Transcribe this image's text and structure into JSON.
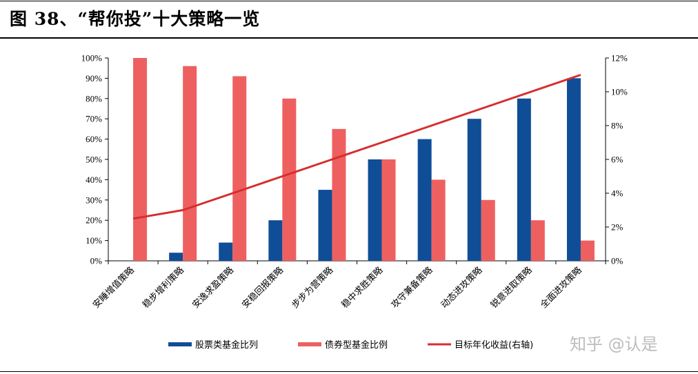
{
  "title": "图 38、“帮你投”十大策略一览",
  "watermark": "知乎 @认是",
  "colors": {
    "equity": "#0f4d97",
    "bond": "#ee6060",
    "line": "#d62d2d",
    "axis": "#000000"
  },
  "chart_data": {
    "type": "bar",
    "categories": [
      "安睡增值策略",
      "稳步增利策略",
      "安逸求盈策略",
      "安稳回报策略",
      "步步为营策略",
      "稳中求胜策略",
      "攻守兼备策略",
      "动态进攻策略",
      "锐意进取策略",
      "全面进攻策略"
    ],
    "series": [
      {
        "name": "股票类基金比列",
        "type": "bar",
        "axis": "left",
        "color": "#0f4d97",
        "values": [
          0,
          4,
          9,
          20,
          35,
          50,
          60,
          70,
          80,
          90
        ]
      },
      {
        "name": "债券型基金比例",
        "type": "bar",
        "axis": "left",
        "color": "#ee6060",
        "values": [
          100,
          96,
          91,
          80,
          65,
          50,
          40,
          30,
          20,
          10
        ]
      },
      {
        "name": "目标年化收益(右轴)",
        "type": "line",
        "axis": "right",
        "color": "#d62d2d",
        "values": [
          2.5,
          3.0,
          4.0,
          5.0,
          6.0,
          7.0,
          8.0,
          9.0,
          10.0,
          11.0
        ]
      }
    ],
    "ylim": [
      0,
      100
    ],
    "yticks": [
      "0%",
      "10%",
      "20%",
      "30%",
      "40%",
      "50%",
      "60%",
      "70%",
      "80%",
      "90%",
      "100%"
    ],
    "y2lim": [
      0,
      12
    ],
    "y2ticks": [
      "0%",
      "2%",
      "4%",
      "6%",
      "8%",
      "10%",
      "12%"
    ],
    "grid": false,
    "legend": "bottom"
  }
}
